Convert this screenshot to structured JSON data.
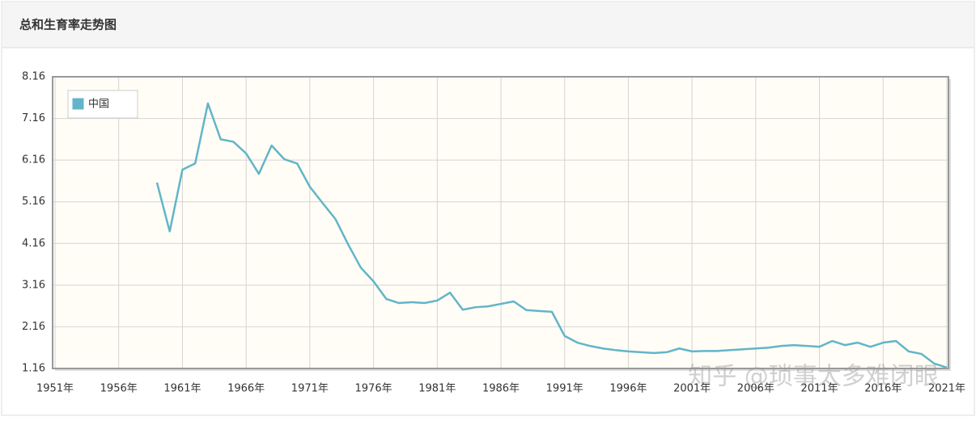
{
  "header": {
    "title": "总和生育率走势图"
  },
  "watermark": "知乎 @琐事太多难闭眼",
  "chart_data": {
    "type": "line",
    "x": [
      1959,
      1960,
      1961,
      1962,
      1963,
      1964,
      1965,
      1966,
      1967,
      1968,
      1969,
      1970,
      1971,
      1972,
      1973,
      1974,
      1975,
      1976,
      1977,
      1978,
      1979,
      1980,
      1981,
      1982,
      1983,
      1984,
      1985,
      1986,
      1987,
      1988,
      1989,
      1990,
      1991,
      1992,
      1993,
      1994,
      1995,
      1996,
      1997,
      1998,
      1999,
      2000,
      2001,
      2002,
      2003,
      2004,
      2005,
      2006,
      2007,
      2008,
      2009,
      2010,
      2011,
      2012,
      2013,
      2014,
      2015,
      2016,
      2017,
      2018,
      2019,
      2020,
      2021
    ],
    "series": [
      {
        "name": "中国",
        "color": "#62b5c8",
        "values": [
          5.62,
          4.45,
          5.93,
          6.08,
          7.52,
          6.66,
          6.6,
          6.32,
          5.83,
          6.51,
          6.18,
          6.08,
          5.52,
          5.13,
          4.75,
          4.14,
          3.58,
          3.25,
          2.83,
          2.73,
          2.75,
          2.73,
          2.79,
          2.98,
          2.57,
          2.63,
          2.65,
          2.71,
          2.77,
          2.56,
          2.54,
          2.52,
          1.94,
          1.78,
          1.7,
          1.64,
          1.6,
          1.57,
          1.55,
          1.53,
          1.55,
          1.64,
          1.57,
          1.58,
          1.58,
          1.6,
          1.62,
          1.64,
          1.66,
          1.7,
          1.72,
          1.7,
          1.68,
          1.82,
          1.72,
          1.78,
          1.68,
          1.78,
          1.82,
          1.57,
          1.51,
          1.28,
          1.18
        ]
      }
    ],
    "xlim": [
      1951,
      2021
    ],
    "xticks": [
      {
        "value": 1951,
        "label": "1951年"
      },
      {
        "value": 1956,
        "label": "1956年"
      },
      {
        "value": 1961,
        "label": "1961年"
      },
      {
        "value": 1966,
        "label": "1966年"
      },
      {
        "value": 1971,
        "label": "1971年"
      },
      {
        "value": 1976,
        "label": "1976年"
      },
      {
        "value": 1981,
        "label": "1981年"
      },
      {
        "value": 1986,
        "label": "1986年"
      },
      {
        "value": 1991,
        "label": "1991年"
      },
      {
        "value": 1996,
        "label": "1996年"
      },
      {
        "value": 2001,
        "label": "2001年"
      },
      {
        "value": 2006,
        "label": "2006年"
      },
      {
        "value": 2011,
        "label": "2011年"
      },
      {
        "value": 2016,
        "label": "2016年"
      },
      {
        "value": 2021,
        "label": "2021年"
      }
    ],
    "ylim": [
      1.16,
      8.16
    ],
    "yticks": [
      1.16,
      2.16,
      3.16,
      4.16,
      5.16,
      6.16,
      7.16,
      8.16
    ],
    "grid": true,
    "legend": "top-left"
  }
}
